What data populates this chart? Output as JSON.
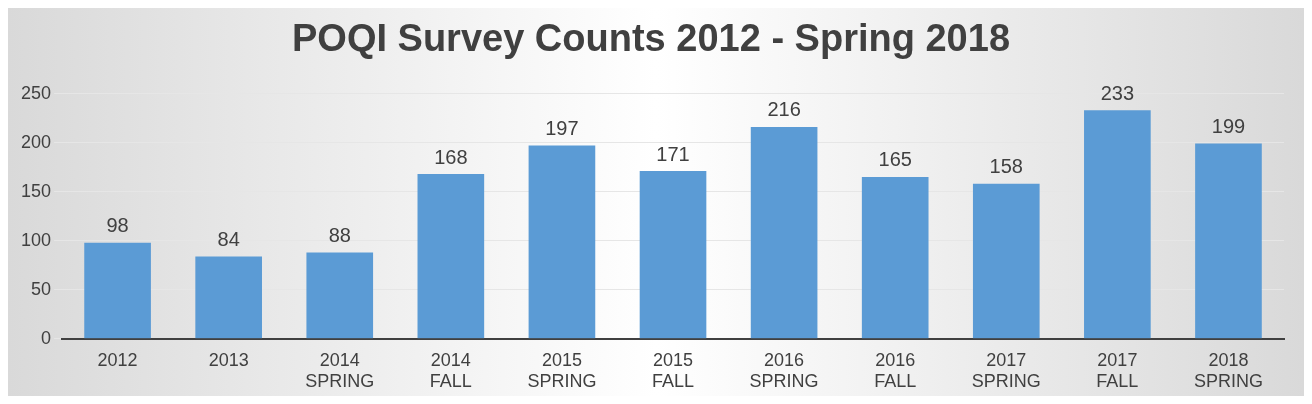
{
  "chart_data": {
    "type": "bar",
    "title": "POQI Survey Counts 2012 - Spring 2018",
    "categories": [
      "2012",
      "2013",
      "2014 SPRING",
      "2014 FALL",
      "2015 SPRING",
      "2015 FALL",
      "2016 SPRING",
      "2016 FALL",
      "2017 SPRING",
      "2017 FALL",
      "2018 SPRING"
    ],
    "values": [
      98,
      84,
      88,
      168,
      197,
      171,
      216,
      165,
      158,
      233,
      199
    ],
    "color": "#5b9bd5",
    "ylim": [
      0,
      250
    ],
    "yticks": [
      0,
      50,
      100,
      150,
      200,
      250
    ],
    "grid": "y",
    "data_labels": true
  }
}
